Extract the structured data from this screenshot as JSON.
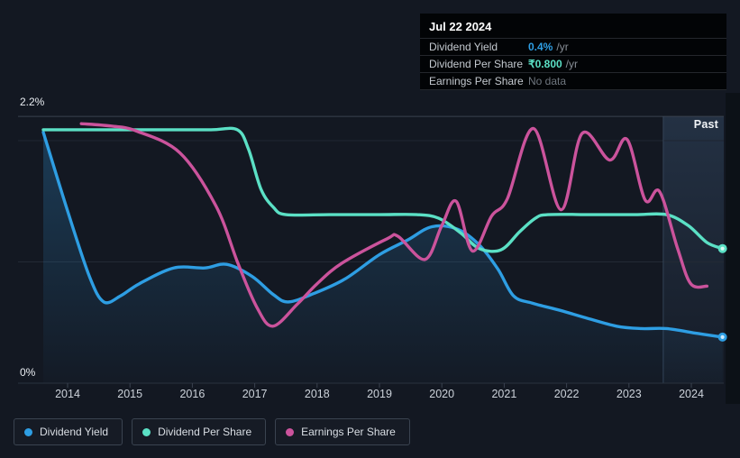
{
  "colors": {
    "background": "#131822",
    "right_strip": "#0c1117",
    "tooltip_bg": "#020406",
    "dividend_yield": "#2E9EE3",
    "dividend_per_share": "#5BE0C5",
    "earnings_per_share": "#CB539C",
    "grid_bright": "#3A424F",
    "grid_faint": "#232A35",
    "grid_fainter": "#1F2631",
    "axis_line": "#2A323E",
    "past_boundary": "#3A4B60",
    "no_data_text": "#6F767E"
  },
  "tooltip": {
    "date": "Jul 22 2024",
    "rows": [
      {
        "label": "Dividend Yield",
        "value": "0.4%",
        "suffix": "/yr",
        "color_key": "dividend_yield"
      },
      {
        "label": "Dividend Per Share",
        "value": "₹0.800",
        "suffix": "/yr",
        "color_key": "dividend_per_share"
      },
      {
        "label": "Earnings Per Share",
        "value": "No data",
        "suffix": "",
        "color_key": "none"
      }
    ]
  },
  "axis": {
    "y_max_label": "2.2%",
    "y_min_label": "0%",
    "past_label": "Past",
    "years": [
      "2014",
      "2015",
      "2016",
      "2017",
      "2018",
      "2019",
      "2020",
      "2021",
      "2022",
      "2023",
      "2024"
    ]
  },
  "legend": [
    {
      "label": "Dividend Yield",
      "color_key": "dividend_yield"
    },
    {
      "label": "Dividend Per Share",
      "color_key": "dividend_per_share"
    },
    {
      "label": "Earnings Per Share",
      "color_key": "earnings_per_share"
    }
  ],
  "chart_data": {
    "type": "line",
    "scale_note": "All three series are drawn on the shared visual axis 0 to 2.2 (labeled as Dividend Yield %); tooltip shows current values: yield 0.4%/yr, DPS ₹0.800/yr, EPS no data",
    "x_axis": {
      "ticks": [
        2014,
        2015,
        2016,
        2017,
        2018,
        2019,
        2020,
        2021,
        2022,
        2023,
        2024
      ],
      "range": [
        2013.6,
        2024.55
      ]
    },
    "y_axis": {
      "unit": "%",
      "range": [
        0,
        2.2
      ],
      "gridlines": [
        2.2,
        2.0,
        1.0,
        0
      ]
    },
    "past_region": {
      "from": 2023.55,
      "to": 2024.55
    },
    "series": [
      {
        "name": "Dividend Yield",
        "color_key": "dividend_yield",
        "current": "0.4% /yr",
        "area": true,
        "end_dot": true,
        "dot_core": "#D9F0FF",
        "points": [
          [
            2013.61,
            2.07
          ],
          [
            2014.0,
            1.42
          ],
          [
            2014.35,
            0.88
          ],
          [
            2014.58,
            0.67
          ],
          [
            2014.85,
            0.72
          ],
          [
            2015.15,
            0.82
          ],
          [
            2015.7,
            0.95
          ],
          [
            2016.2,
            0.95
          ],
          [
            2016.55,
            0.98
          ],
          [
            2016.96,
            0.88
          ],
          [
            2017.3,
            0.73
          ],
          [
            2017.54,
            0.67
          ],
          [
            2017.95,
            0.74
          ],
          [
            2018.45,
            0.86
          ],
          [
            2019.0,
            1.06
          ],
          [
            2019.45,
            1.18
          ],
          [
            2019.84,
            1.29
          ],
          [
            2020.25,
            1.27
          ],
          [
            2020.6,
            1.14
          ],
          [
            2020.9,
            0.94
          ],
          [
            2021.15,
            0.72
          ],
          [
            2021.45,
            0.66
          ],
          [
            2021.9,
            0.6
          ],
          [
            2022.3,
            0.54
          ],
          [
            2022.8,
            0.47
          ],
          [
            2023.2,
            0.45
          ],
          [
            2023.6,
            0.45
          ],
          [
            2024.1,
            0.41
          ],
          [
            2024.5,
            0.38
          ]
        ]
      },
      {
        "name": "Dividend Per Share",
        "color_key": "dividend_per_share",
        "current": "₹0.800 /yr",
        "area": false,
        "end_dot": true,
        "dot_core": "#DFFCF4",
        "points": [
          [
            2013.61,
            2.09
          ],
          [
            2014.5,
            2.09
          ],
          [
            2015.5,
            2.09
          ],
          [
            2016.3,
            2.09
          ],
          [
            2016.72,
            2.09
          ],
          [
            2016.9,
            1.93
          ],
          [
            2017.1,
            1.6
          ],
          [
            2017.3,
            1.45
          ],
          [
            2017.5,
            1.39
          ],
          [
            2018.2,
            1.39
          ],
          [
            2019.0,
            1.39
          ],
          [
            2019.6,
            1.39
          ],
          [
            2019.95,
            1.36
          ],
          [
            2020.3,
            1.24
          ],
          [
            2020.6,
            1.11
          ],
          [
            2020.95,
            1.1
          ],
          [
            2021.25,
            1.25
          ],
          [
            2021.5,
            1.36
          ],
          [
            2021.7,
            1.39
          ],
          [
            2022.4,
            1.39
          ],
          [
            2023.1,
            1.39
          ],
          [
            2023.6,
            1.39
          ],
          [
            2023.95,
            1.3
          ],
          [
            2024.25,
            1.16
          ],
          [
            2024.5,
            1.11
          ]
        ]
      },
      {
        "name": "Earnings Per Share",
        "color_key": "earnings_per_share",
        "current": "No data",
        "area": false,
        "end_dot": false,
        "dot_core": "",
        "points": [
          [
            2014.22,
            2.14
          ],
          [
            2014.7,
            2.12
          ],
          [
            2015.1,
            2.08
          ],
          [
            2015.8,
            1.9
          ],
          [
            2016.38,
            1.46
          ],
          [
            2016.73,
            0.99
          ],
          [
            2017.03,
            0.63
          ],
          [
            2017.29,
            0.47
          ],
          [
            2017.68,
            0.65
          ],
          [
            2018.0,
            0.82
          ],
          [
            2018.4,
            0.99
          ],
          [
            2019.12,
            1.19
          ],
          [
            2019.3,
            1.21
          ],
          [
            2019.73,
            1.02
          ],
          [
            2020.0,
            1.3
          ],
          [
            2020.23,
            1.5
          ],
          [
            2020.49,
            1.09
          ],
          [
            2020.8,
            1.38
          ],
          [
            2021.05,
            1.52
          ],
          [
            2021.47,
            2.1
          ],
          [
            2021.91,
            1.43
          ],
          [
            2022.25,
            2.06
          ],
          [
            2022.69,
            1.84
          ],
          [
            2022.97,
            2.01
          ],
          [
            2023.26,
            1.51
          ],
          [
            2023.49,
            1.58
          ],
          [
            2023.78,
            1.11
          ],
          [
            2023.99,
            0.82
          ],
          [
            2024.25,
            0.8
          ]
        ]
      }
    ]
  }
}
